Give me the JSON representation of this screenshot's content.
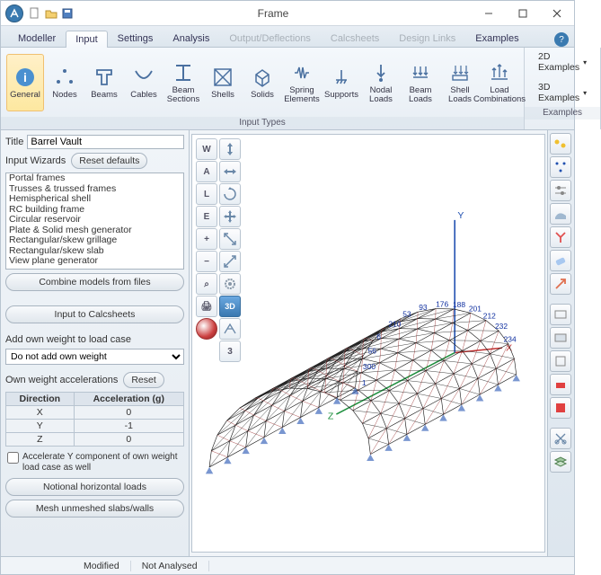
{
  "window": {
    "title": "Frame"
  },
  "tabs": {
    "items": [
      "Modeller",
      "Input",
      "Settings",
      "Analysis",
      "Output/Deflections",
      "Calcsheets",
      "Design Links",
      "Examples"
    ],
    "active": 1,
    "disabled": [
      4,
      5,
      6
    ]
  },
  "ribbon": {
    "group1": {
      "items": [
        {
          "name": "general",
          "label": "General"
        },
        {
          "name": "nodes",
          "label": "Nodes"
        },
        {
          "name": "beams",
          "label": "Beams"
        },
        {
          "name": "cables",
          "label": "Cables"
        },
        {
          "name": "beam-sections",
          "label": "Beam\nSections"
        },
        {
          "name": "shells",
          "label": "Shells"
        },
        {
          "name": "solids",
          "label": "Solids"
        },
        {
          "name": "spring-elements",
          "label": "Spring\nElements"
        },
        {
          "name": "supports",
          "label": "Supports"
        },
        {
          "name": "nodal-loads",
          "label": "Nodal\nLoads"
        },
        {
          "name": "beam-loads",
          "label": "Beam\nLoads"
        },
        {
          "name": "shell-loads",
          "label": "Shell\nLoads"
        },
        {
          "name": "load-combinations",
          "label": "Load\nCombinations"
        }
      ],
      "active": 0,
      "label": "Input Types"
    },
    "group2": {
      "items": [
        {
          "label": "2D Examples"
        },
        {
          "label": "3D Examples"
        }
      ],
      "label": "Examples"
    }
  },
  "left": {
    "title_lbl": "Title",
    "title_val": "Barrel Vault",
    "wizards_lbl": "Input Wizards",
    "reset_defaults": "Reset defaults",
    "wizards": [
      "Portal frames",
      "Trusses & trussed frames",
      "Hemispherical shell",
      "RC building frame",
      "Circular reservoir",
      "Plate & Solid mesh generator",
      "Rectangular/skew grillage",
      "Rectangular/skew slab",
      "View plane generator"
    ],
    "combine_btn": "Combine models from files",
    "calcsheets_btn": "Input to Calcsheets",
    "ownweight_lbl": "Add own weight to load case",
    "ownweight_val": "Do not add own weight",
    "accel_lbl": "Own weight accelerations",
    "reset": "Reset",
    "accel_cols": [
      "Direction",
      "Acceleration (g)"
    ],
    "accel_rows": [
      [
        "X",
        "0"
      ],
      [
        "Y",
        "-1"
      ],
      [
        "Z",
        "0"
      ]
    ],
    "accel_chk": "Accelerate Y component of own weight load case as well",
    "notional_btn": "Notional horizontal loads",
    "mesh_btn": "Mesh unmeshed slabs/walls"
  },
  "viewport": {
    "leftcol1": [
      "W",
      "A",
      "L",
      "E",
      "+",
      "−",
      "⌕",
      "🖨"
    ],
    "leftcol2_3d": "3D",
    "leftcol2_num": "3",
    "axis": {
      "x": "X",
      "y": "Y",
      "z": "Z"
    },
    "node_labels": [
      "234",
      "232",
      "212",
      "201",
      "188",
      "176",
      "93",
      "53",
      "210",
      "6",
      "56",
      "300",
      "1"
    ],
    "colors": {
      "wire": "#1a1a1a",
      "wire2": "#8a1010",
      "axis_x": "#c03030",
      "axis_y": "#2050b0",
      "axis_z": "#209040",
      "bg": "#ffffff"
    }
  },
  "status": {
    "s1": "Modified",
    "s2": "Not Analysed"
  }
}
